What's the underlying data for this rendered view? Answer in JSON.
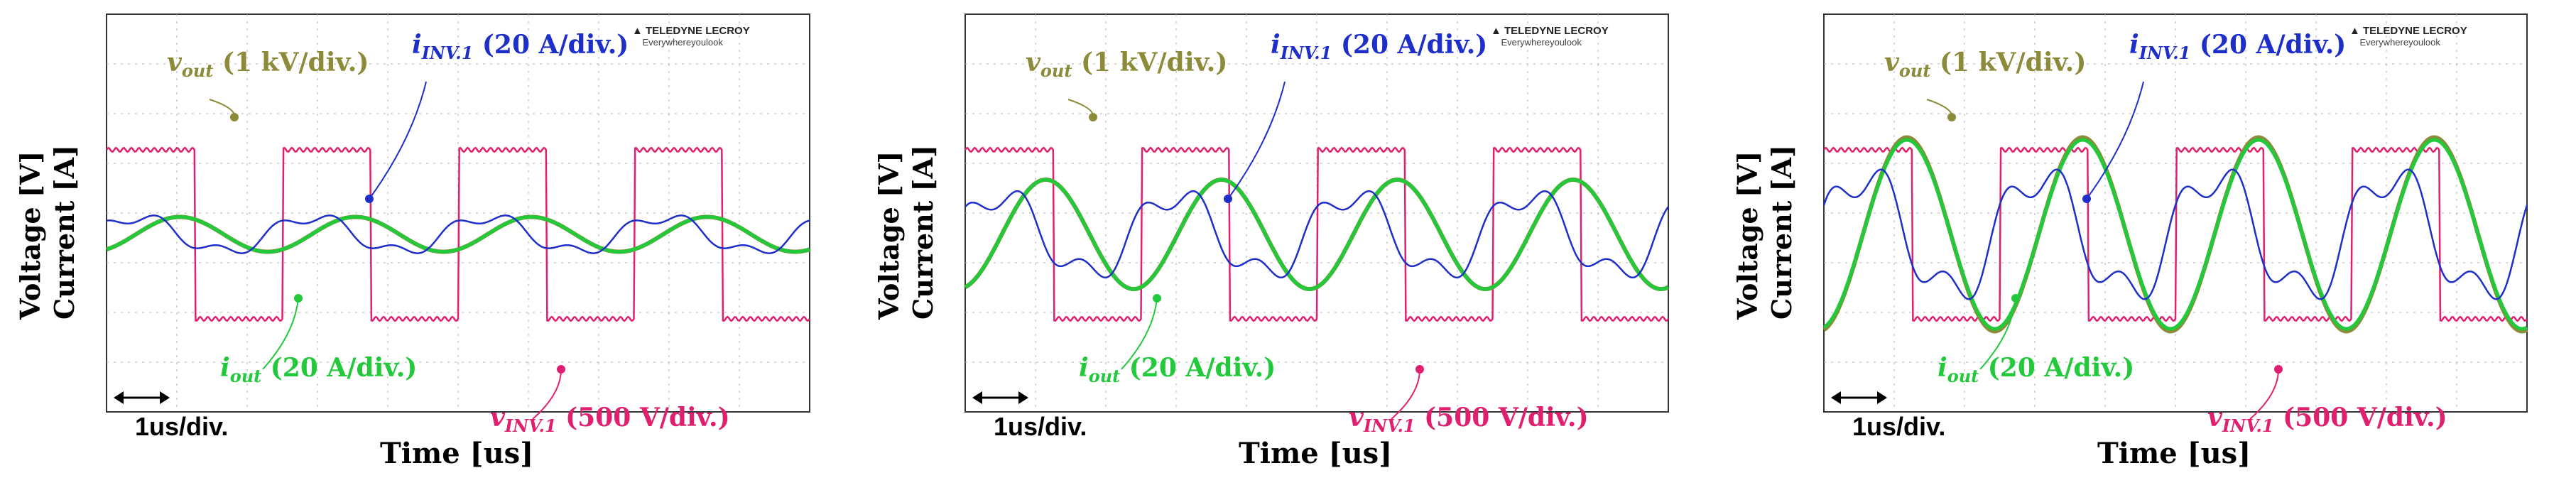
{
  "chart_data": [
    {
      "type": "line",
      "logo": {
        "brand": "TELEDYNE LECROY",
        "tagline": "Everywhereyoulook"
      },
      "xlabel": "Time [us]",
      "ylabel_voltage": "Voltage [V]",
      "ylabel_current": "Current [A]",
      "timebase": "1us/div.",
      "grid": true,
      "xlim": [
        0,
        10
      ],
      "series": [
        {
          "name": "v_out",
          "label_sym": "v",
          "label_sub": "out",
          "label_rest": " (1 kV/div.)",
          "color": "#8b8b3a",
          "amplitude_div": 0.35,
          "phase_deg": -60
        },
        {
          "name": "i_INV.1",
          "label_sym": "i",
          "label_sub": "INV.1",
          "label_rest": " (20 A/div.)",
          "color": "#1e2fc9",
          "amplitude_div": 0.35,
          "phase_deg": 30
        },
        {
          "name": "i_out",
          "label_sym": "i",
          "label_sub": "out",
          "label_rest": " (20 A/div.)",
          "color": "#22c93a",
          "amplitude_div": 0.35,
          "phase_deg": -60
        },
        {
          "name": "v_INV.1",
          "label_sym": "v",
          "label_sub": "INV.1",
          "label_rest": " (500 V/div.)",
          "color": "#e0206e",
          "amplitude_div": 1.7,
          "phase_deg": 0
        }
      ]
    },
    {
      "type": "line",
      "logo": {
        "brand": "TELEDYNE LECROY",
        "tagline": "Everywhereyoulook"
      },
      "xlabel": "Time [us]",
      "ylabel_voltage": "Voltage [V]",
      "ylabel_current": "Current [A]",
      "timebase": "1us/div.",
      "grid": true,
      "xlim": [
        0,
        10
      ],
      "series": [
        {
          "name": "v_out",
          "label_sym": "v",
          "label_sub": "out",
          "label_rest": " (1 kV/div.)",
          "color": "#8b8b3a",
          "amplitude_div": 1.1,
          "phase_deg": -75
        },
        {
          "name": "i_INV.1",
          "label_sym": "i",
          "label_sub": "INV.1",
          "label_rest": " (20 A/div.)",
          "color": "#1e2fc9",
          "amplitude_div": 0.8,
          "phase_deg": 20
        },
        {
          "name": "i_out",
          "label_sym": "i",
          "label_sub": "out",
          "label_rest": " (20 A/div.)",
          "color": "#22c93a",
          "amplitude_div": 1.1,
          "phase_deg": -75
        },
        {
          "name": "v_INV.1",
          "label_sym": "v",
          "label_sub": "INV.1",
          "label_rest": " (500 V/div.)",
          "color": "#e0206e",
          "amplitude_div": 1.7,
          "phase_deg": 0
        }
      ]
    },
    {
      "type": "line",
      "logo": {
        "brand": "TELEDYNE LECROY",
        "tagline": "Everywhereyoulook"
      },
      "xlabel": "Time [us]",
      "ylabel_voltage": "Voltage [V]",
      "ylabel_current": "Current [A]",
      "timebase": "1us/div.",
      "grid": true,
      "xlim": [
        0,
        10
      ],
      "series": [
        {
          "name": "v_out",
          "label_sym": "v",
          "label_sub": "out",
          "label_rest": " (1 kV/div.)",
          "color": "#8b8b3a",
          "amplitude_div": 1.95,
          "phase_deg": -80
        },
        {
          "name": "i_INV.1",
          "label_sym": "i",
          "label_sub": "INV.1",
          "label_rest": " (20 A/div.)",
          "color": "#1e2fc9",
          "amplitude_div": 1.2,
          "phase_deg": 10
        },
        {
          "name": "i_out",
          "label_sym": "i",
          "label_sub": "out",
          "label_rest": " (20 A/div.)",
          "color": "#22c93a",
          "amplitude_div": 1.9,
          "phase_deg": -80
        },
        {
          "name": "v_INV.1",
          "label_sym": "v",
          "label_sub": "INV.1",
          "label_rest": " (500 V/div.)",
          "color": "#e0206e",
          "amplitude_div": 1.7,
          "phase_deg": 0
        }
      ]
    }
  ]
}
